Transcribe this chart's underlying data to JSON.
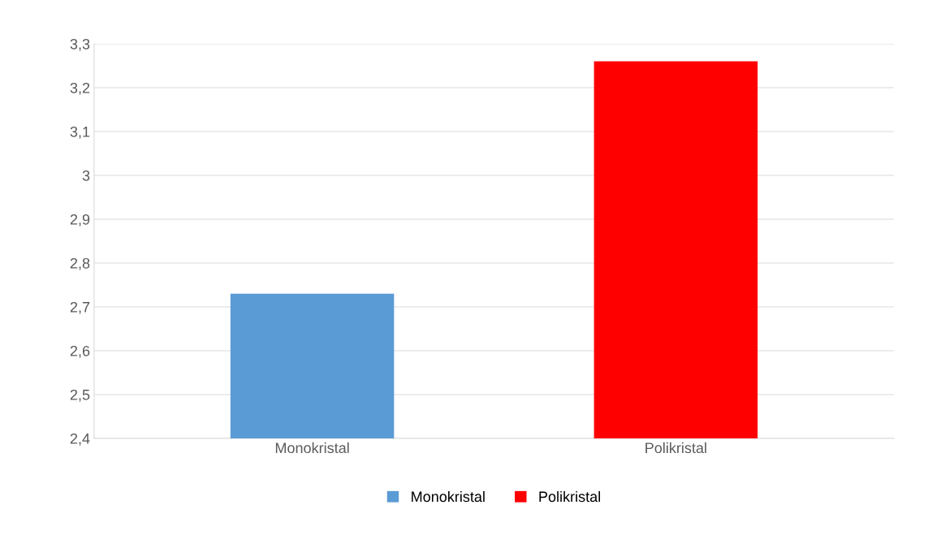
{
  "chart_data": {
    "type": "bar",
    "categories": [
      "Monokristal",
      "Polikristal"
    ],
    "series": [
      {
        "name": "Monokristal",
        "color": "#5b9bd5",
        "values": [
          2.73,
          null
        ]
      },
      {
        "name": "Polikristal",
        "color": "#ff0000",
        "values": [
          null,
          3.26
        ]
      }
    ],
    "ylim": [
      2.4,
      3.3
    ],
    "yticks": [
      {
        "value": 2.4,
        "label": "2,4"
      },
      {
        "value": 2.5,
        "label": "2,5"
      },
      {
        "value": 2.6,
        "label": "2,6"
      },
      {
        "value": 2.7,
        "label": "2,7"
      },
      {
        "value": 2.8,
        "label": "2,8"
      },
      {
        "value": 2.9,
        "label": "2,9"
      },
      {
        "value": 3.0,
        "label": "3"
      },
      {
        "value": 3.1,
        "label": "3,1"
      },
      {
        "value": 3.2,
        "label": "3,2"
      },
      {
        "value": 3.3,
        "label": "3,3"
      }
    ],
    "grid": "y",
    "legend": "bottom"
  }
}
